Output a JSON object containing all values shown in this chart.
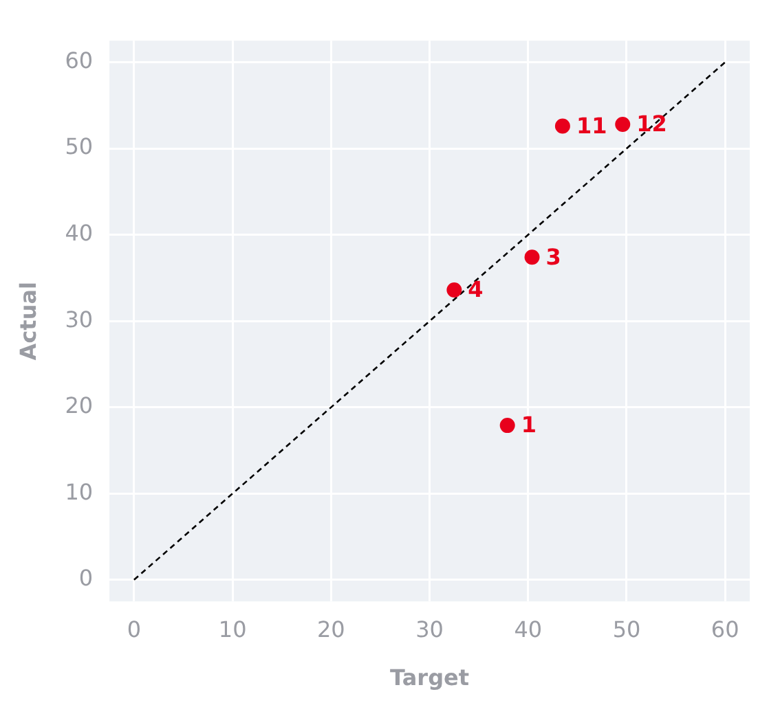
{
  "chart_data": {
    "type": "scatter",
    "xlabel": "Target",
    "ylabel": "Actual",
    "xlim": [
      -2.5,
      62.5
    ],
    "ylim": [
      -2.5,
      62.5
    ],
    "xticks": [
      0,
      10,
      20,
      30,
      40,
      50,
      60
    ],
    "yticks": [
      0,
      10,
      20,
      30,
      40,
      50,
      60
    ],
    "grid": true,
    "legend": false,
    "marker": "circle",
    "series": [
      {
        "color": "#e8001c",
        "x": [
          37.9,
          32.5,
          40.4,
          43.5,
          49.6
        ],
        "values": [
          17.9,
          33.6,
          37.4,
          52.6,
          52.8
        ]
      },
      {
        "type": "line",
        "color": "#000000",
        "line_style": "dashed",
        "marker": "none",
        "x": [
          0,
          60
        ],
        "values": [
          0,
          60
        ]
      }
    ],
    "annotations": [
      {
        "text": "1",
        "x": 37.9,
        "y": 17.9
      },
      {
        "text": "4",
        "x": 32.5,
        "y": 33.6
      },
      {
        "text": "3",
        "x": 40.4,
        "y": 37.4
      },
      {
        "text": "11",
        "x": 43.5,
        "y": 52.6
      },
      {
        "text": "12",
        "x": 49.6,
        "y": 52.8
      }
    ]
  }
}
